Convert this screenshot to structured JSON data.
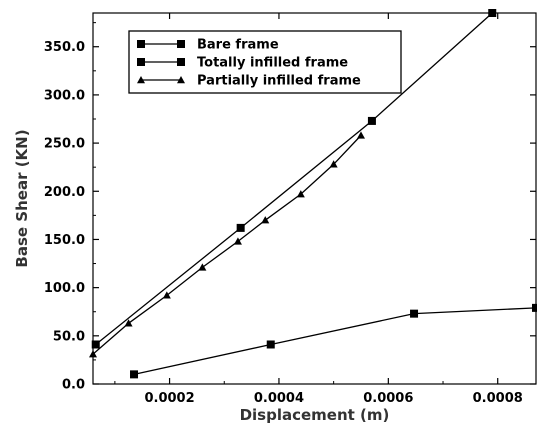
{
  "chart_data": {
    "type": "line",
    "title": "",
    "xlabel": "Displacement (m)",
    "ylabel": "Base Shear (KN)",
    "xlim": [
      6e-05,
      0.00087
    ],
    "ylim": [
      0,
      385
    ],
    "x_ticks": [
      0.0002,
      0.0004,
      0.0006,
      0.0008
    ],
    "x_tick_labels": [
      "0.0002",
      "0.0004",
      "0.0006",
      "0.0008"
    ],
    "y_ticks": [
      0,
      50,
      100,
      150,
      200,
      250,
      300,
      350
    ],
    "y_tick_labels": [
      "0.0",
      "50.0",
      "100.0",
      "150.0",
      "200.0",
      "250.0",
      "300.0",
      "350.0"
    ],
    "grid": false,
    "legend_position": "top-left",
    "series": [
      {
        "name": "Bare frame",
        "marker": "square",
        "x": [
          0.000135,
          0.000385,
          0.000647,
          0.00087
        ],
        "y": [
          10,
          41,
          73,
          79
        ]
      },
      {
        "name": "Totally infilled frame",
        "marker": "square",
        "x": [
          6.5e-05,
          0.00033,
          0.00057,
          0.00079
        ],
        "y": [
          41,
          162,
          273,
          385
        ]
      },
      {
        "name": "Partially infilled frame",
        "marker": "triangle",
        "x": [
          6e-05,
          0.000125,
          0.000195,
          0.00026,
          0.000325,
          0.000375,
          0.00044,
          0.0005,
          0.00055
        ],
        "y": [
          31,
          63,
          92,
          121,
          148,
          170,
          197,
          228,
          258
        ]
      }
    ]
  }
}
